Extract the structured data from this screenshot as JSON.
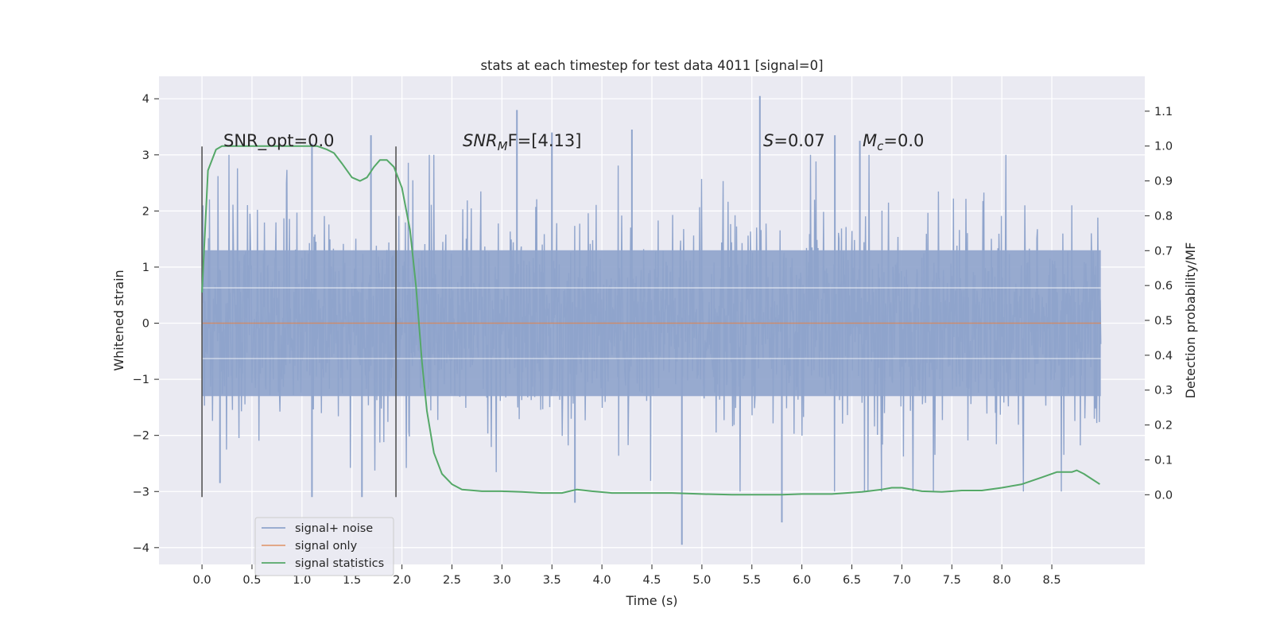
{
  "chart_data": {
    "type": "line",
    "title": "stats at each timestep for test data 4011 [signal=0]",
    "xlabel": "Time (s)",
    "ylabel_left": "Whitened strain",
    "ylabel_right": "Detection probability/MF",
    "xlim": [
      -0.43,
      9.43
    ],
    "ylim_left": [
      -4.3,
      4.4
    ],
    "ylim_right": [
      -0.2,
      1.2
    ],
    "x_ticks": [
      "0.0",
      "0.5",
      "1.0",
      "1.5",
      "2.0",
      "2.5",
      "3.0",
      "3.5",
      "4.0",
      "4.5",
      "5.0",
      "5.5",
      "6.0",
      "6.5",
      "7.0",
      "7.5",
      "8.0",
      "8.5"
    ],
    "left_ticks": [
      "4",
      "3",
      "2",
      "1",
      "0",
      "−1",
      "−2",
      "−3",
      "−4"
    ],
    "right_ticks": [
      "1.1",
      "1.0",
      "0.9",
      "0.8",
      "0.7",
      "0.6",
      "0.5",
      "0.4",
      "0.3",
      "0.2",
      "0.1",
      "0.0"
    ],
    "grid": true,
    "legend_position": "bottom-left",
    "annotations": {
      "snr_opt": "SNR_opt=0.0",
      "snr_mf_prefix": "SNR",
      "snr_mf_sub": "M",
      "snr_mf_suffix": "F=[4.13]",
      "s_prefix": "S",
      "s_suffix": "=0.07",
      "mc_prefix": "M",
      "mc_sub": "c",
      "mc_suffix": "=0.0"
    },
    "vertical_markers_x": [
      0.0,
      1.94
    ],
    "series": [
      {
        "name": "signal+ noise",
        "axis": "left",
        "color": "#8fa4cc",
        "style": "dense noise trace, mostly within ±1.3 with spikes",
        "t_range": [
          0.0,
          8.99
        ],
        "highlight_peaks": [
          {
            "x": 1.1,
            "y": 3.2
          },
          {
            "x": 1.69,
            "y": 3.35
          },
          {
            "x": 3.15,
            "y": 3.8
          },
          {
            "x": 3.5,
            "y": 3.4
          },
          {
            "x": 4.3,
            "y": 3.45
          },
          {
            "x": 5.58,
            "y": 4.05
          },
          {
            "x": 6.33,
            "y": 3.35
          },
          {
            "x": 6.58,
            "y": 3.25
          }
        ],
        "highlight_troughs": [
          {
            "x": 0.18,
            "y": -2.85
          },
          {
            "x": 1.1,
            "y": -3.1
          },
          {
            "x": 1.6,
            "y": -3.1
          },
          {
            "x": 3.73,
            "y": -3.2
          },
          {
            "x": 4.8,
            "y": -3.95
          },
          {
            "x": 5.8,
            "y": -3.55
          }
        ]
      },
      {
        "name": "signal only",
        "axis": "left",
        "color": "#dd8452",
        "x": [
          0.0,
          8.99
        ],
        "y": [
          0.0,
          0.0
        ]
      },
      {
        "name": "signal statistics",
        "axis": "right",
        "color": "#55a868",
        "x": [
          0.0,
          0.06,
          0.14,
          0.2,
          0.3,
          0.4,
          0.6,
          0.8,
          1.0,
          1.15,
          1.25,
          1.32,
          1.4,
          1.5,
          1.58,
          1.65,
          1.72,
          1.78,
          1.85,
          1.92,
          2.0,
          2.08,
          2.14,
          2.2,
          2.25,
          2.32,
          2.4,
          2.5,
          2.6,
          2.8,
          3.0,
          3.2,
          3.4,
          3.6,
          3.75,
          3.9,
          4.1,
          4.3,
          4.5,
          4.7,
          5.0,
          5.3,
          5.6,
          5.8,
          6.0,
          6.3,
          6.6,
          6.8,
          6.9,
          7.0,
          7.2,
          7.4,
          7.6,
          7.8,
          8.0,
          8.2,
          8.4,
          8.55,
          8.7,
          8.75,
          8.82,
          8.9,
          8.98
        ],
        "y": [
          0.58,
          0.93,
          0.99,
          1.0,
          1.0,
          1.0,
          1.0,
          1.0,
          1.0,
          1.0,
          0.99,
          0.98,
          0.95,
          0.91,
          0.9,
          0.91,
          0.94,
          0.96,
          0.96,
          0.94,
          0.88,
          0.76,
          0.6,
          0.38,
          0.24,
          0.12,
          0.06,
          0.03,
          0.015,
          0.01,
          0.01,
          0.008,
          0.005,
          0.005,
          0.015,
          0.01,
          0.005,
          0.005,
          0.005,
          0.005,
          0.002,
          0.0,
          0.0,
          0.0,
          0.002,
          0.002,
          0.008,
          0.015,
          0.02,
          0.02,
          0.01,
          0.008,
          0.012,
          0.012,
          0.02,
          0.03,
          0.05,
          0.065,
          0.065,
          0.07,
          0.06,
          0.045,
          0.03
        ]
      }
    ]
  }
}
